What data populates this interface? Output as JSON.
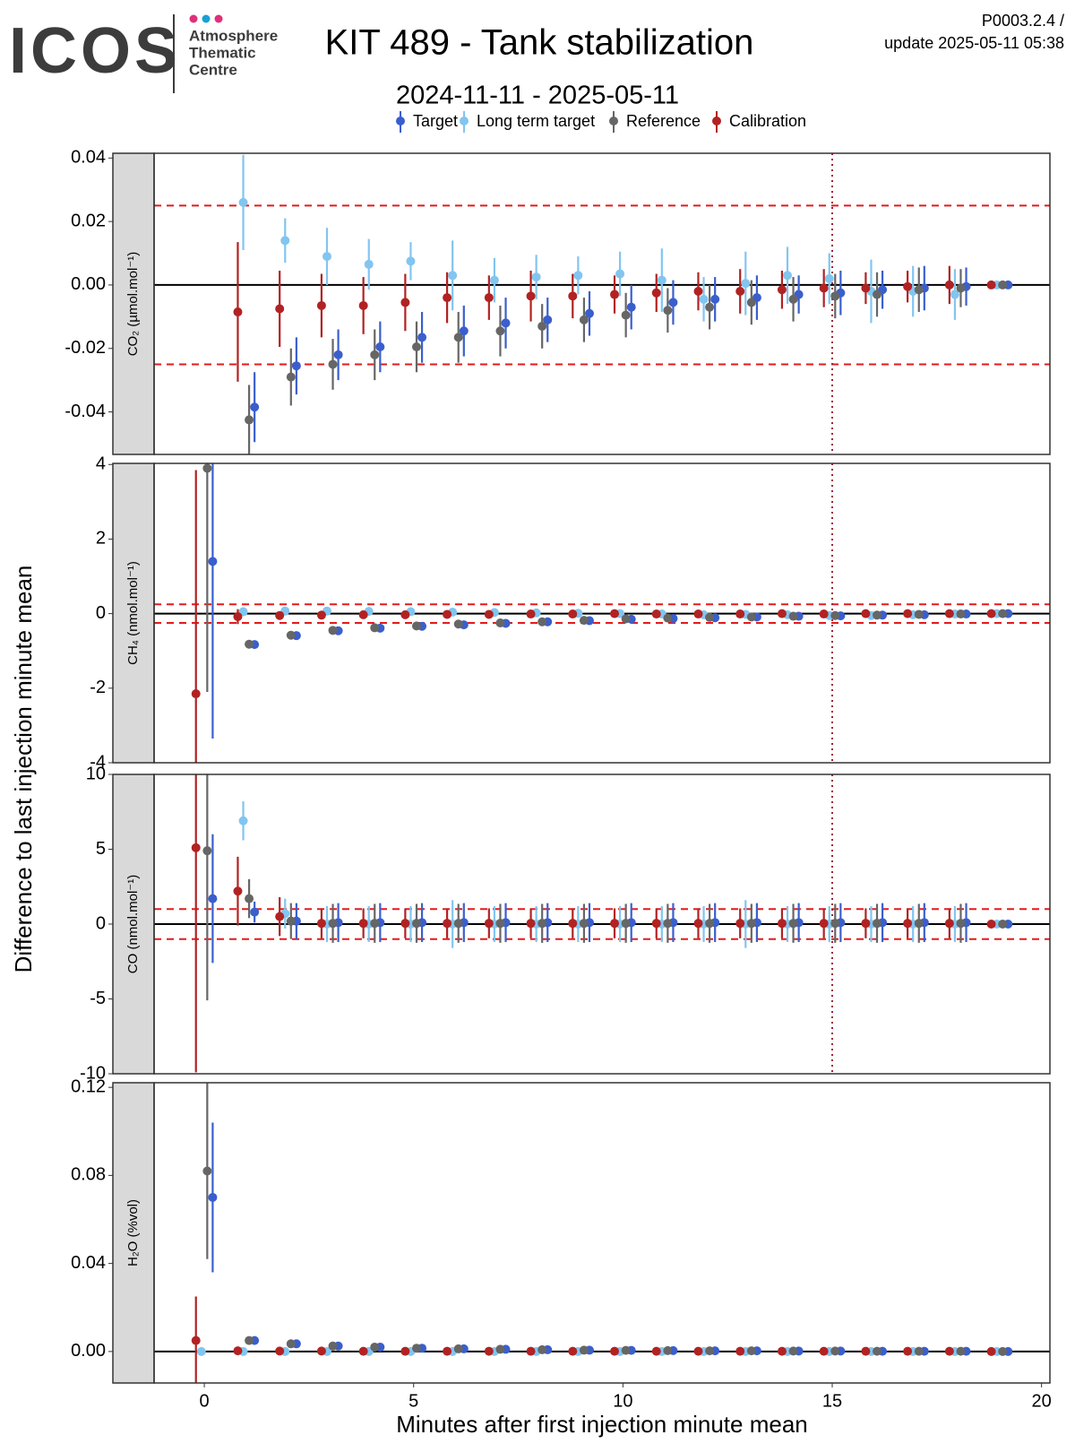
{
  "header": {
    "logo": "ICOS",
    "logo_sub": [
      "Atmosphere",
      "Thematic",
      "Centre"
    ],
    "title": "KIT 489 - Tank stabilization",
    "subtitle": "2024-11-11 - 2025-05-11",
    "version": "P0003.2.4 /",
    "update": "update  2025-05-11 05:38"
  },
  "x_axis": {
    "label": "Minutes after first injection minute mean",
    "xlim": [
      -1.2,
      20.2
    ],
    "xticks": [
      0,
      5,
      10,
      15,
      20
    ]
  },
  "y_axis": {
    "label": "Difference to last injection minute mean"
  },
  "chart_data": [
    {
      "type": "errorbar",
      "strip": "CO₂ (µmol.mol⁻¹)",
      "ylim": [
        -0.0534,
        0.0415
      ],
      "yticks": [
        -0.04,
        -0.02,
        {
          "value": 0,
          "label": "0.00"
        },
        0.02,
        0.04
      ],
      "hlines": [
        -0.025,
        0.025
      ],
      "vline": 15,
      "x": [
        0,
        1,
        2,
        3,
        4,
        5,
        6,
        7,
        8,
        9,
        10,
        11,
        12,
        13,
        14,
        15,
        16,
        17,
        18,
        19
      ],
      "series": [
        {
          "name": "Target",
          "color": "#3a5fcd",
          "values": [
            null,
            -0.0385,
            -0.0255,
            -0.022,
            -0.0195,
            -0.0165,
            -0.0145,
            -0.012,
            -0.011,
            -0.009,
            -0.007,
            -0.0055,
            -0.0045,
            -0.004,
            -0.003,
            -0.0025,
            -0.0015,
            -0.001,
            -0.0005,
            0
          ],
          "errors": [
            null,
            0.011,
            0.009,
            0.008,
            0.008,
            0.008,
            0.008,
            0.008,
            0.007,
            0.007,
            0.007,
            0.007,
            0.007,
            0.007,
            0.006,
            0.007,
            0.006,
            0.007,
            0.006,
            0
          ]
        },
        {
          "name": "Long term target",
          "color": "#82c5f0",
          "values": [
            null,
            0.026,
            0.014,
            0.009,
            0.0065,
            0.0075,
            0.003,
            0.0015,
            0.0025,
            0.003,
            0.0035,
            0.0015,
            -0.0045,
            0.0005,
            0.003,
            0.002,
            -0.002,
            -0.002,
            -0.003,
            0
          ],
          "errors": [
            null,
            0.015,
            0.007,
            0.009,
            0.008,
            0.006,
            0.011,
            0.007,
            0.007,
            0.006,
            0.007,
            0.01,
            0.007,
            0.01,
            0.009,
            0.008,
            0.01,
            0.008,
            0.008,
            0
          ]
        },
        {
          "name": "Reference",
          "color": "#666666",
          "values": [
            null,
            -0.0425,
            -0.029,
            -0.025,
            -0.022,
            -0.0195,
            -0.0165,
            -0.0145,
            -0.013,
            -0.011,
            -0.0095,
            -0.008,
            -0.007,
            -0.0055,
            -0.0045,
            -0.0035,
            -0.003,
            -0.0015,
            -0.001,
            0
          ],
          "errors": [
            null,
            0.011,
            0.009,
            0.008,
            0.008,
            0.008,
            0.008,
            0.008,
            0.007,
            0.007,
            0.007,
            0.007,
            0.007,
            0.007,
            0.007,
            0.007,
            0.007,
            0.007,
            0.006,
            0
          ]
        },
        {
          "name": "Calibration",
          "color": "#b22222",
          "values": [
            null,
            -0.0085,
            -0.0075,
            -0.0065,
            -0.0065,
            -0.0055,
            -0.004,
            -0.004,
            -0.0035,
            -0.0035,
            -0.003,
            -0.0025,
            -0.002,
            -0.002,
            -0.0015,
            -0.001,
            -0.001,
            -0.0005,
            0,
            0
          ],
          "errors": [
            null,
            0.022,
            0.012,
            0.01,
            0.009,
            0.009,
            0.008,
            0.007,
            0.008,
            0.007,
            0.006,
            0.006,
            0.006,
            0.007,
            0.006,
            0.006,
            0.005,
            0.005,
            0.006,
            0
          ]
        }
      ]
    },
    {
      "type": "errorbar",
      "strip": "CH₄ (nmol.mol⁻¹)",
      "ylim": [
        -4,
        4.03
      ],
      "yticks": [
        -4,
        -2,
        0,
        2,
        4
      ],
      "hlines": [
        -0.25,
        0.25
      ],
      "vline": 15,
      "x": [
        0,
        1,
        2,
        3,
        4,
        5,
        6,
        7,
        8,
        9,
        10,
        11,
        12,
        13,
        14,
        15,
        16,
        17,
        18,
        19
      ],
      "series": [
        {
          "name": "Target",
          "color": "#3a5fcd",
          "values": [
            1.4,
            -0.83,
            -0.59,
            -0.46,
            -0.39,
            -0.34,
            -0.3,
            -0.26,
            -0.22,
            -0.19,
            -0.15,
            -0.13,
            -0.11,
            -0.09,
            -0.07,
            -0.06,
            -0.04,
            -0.03,
            -0.01,
            0
          ],
          "errors": [
            4.75,
            0.06,
            0.05,
            0.05,
            0.05,
            0.05,
            0.05,
            0.05,
            0.05,
            0.05,
            0.05,
            0.05,
            0.05,
            0.05,
            0.05,
            0.05,
            0.05,
            0.05,
            0.05,
            0
          ]
        },
        {
          "name": "Long term target",
          "color": "#82c5f0",
          "values": [
            null,
            0.05,
            0.07,
            0.07,
            0.06,
            0.05,
            0.04,
            0.03,
            0.02,
            0.01,
            0,
            -0.01,
            -0.03,
            -0.02,
            -0.03,
            -0.05,
            -0.05,
            -0.03,
            -0.01,
            0
          ],
          "errors": [
            null,
            0.05,
            0.05,
            0.05,
            0.05,
            0.05,
            0.05,
            0.05,
            0.05,
            0.05,
            0.05,
            0.05,
            0.05,
            0.05,
            0.05,
            0.05,
            0.05,
            0.05,
            0.05,
            0
          ]
        },
        {
          "name": "Reference",
          "color": "#666666",
          "values": [
            3.9,
            -0.82,
            -0.58,
            -0.45,
            -0.38,
            -0.33,
            -0.28,
            -0.25,
            -0.22,
            -0.18,
            -0.14,
            -0.12,
            -0.1,
            -0.09,
            -0.07,
            -0.05,
            -0.04,
            -0.02,
            -0.01,
            0
          ],
          "errors": [
            6,
            0.06,
            0.05,
            0.05,
            0.05,
            0.05,
            0.05,
            0.05,
            0.05,
            0.05,
            0.05,
            0.05,
            0.05,
            0.05,
            0.05,
            0.05,
            0.05,
            0.05,
            0.05,
            0
          ]
        },
        {
          "name": "Calibration",
          "color": "#b22222",
          "values": [
            -2.15,
            -0.08,
            -0.05,
            -0.04,
            -0.03,
            -0.03,
            -0.02,
            -0.02,
            -0.01,
            -0.01,
            0,
            -0.01,
            -0.01,
            -0.01,
            0,
            -0.01,
            0,
            0,
            0,
            0
          ],
          "errors": [
            6,
            0.2,
            0.08,
            0.06,
            0.05,
            0.05,
            0.05,
            0.05,
            0.05,
            0.05,
            0.05,
            0.05,
            0.05,
            0.05,
            0.05,
            0.05,
            0.05,
            0.05,
            0.05,
            0
          ]
        }
      ]
    },
    {
      "type": "errorbar",
      "strip": "CO (nmol.mol⁻¹)",
      "ylim": [
        -10,
        10
      ],
      "yticks": [
        -10,
        -5,
        0,
        5,
        10
      ],
      "hlines": [
        -1,
        1
      ],
      "vline": 15,
      "x": [
        0,
        1,
        2,
        3,
        4,
        5,
        6,
        7,
        8,
        9,
        10,
        11,
        12,
        13,
        14,
        15,
        16,
        17,
        18,
        19
      ],
      "series": [
        {
          "name": "Target",
          "color": "#3a5fcd",
          "values": [
            1.7,
            0.8,
            0.2,
            0.1,
            0.1,
            0.1,
            0.1,
            0.1,
            0.1,
            0.1,
            0.1,
            0.1,
            0.1,
            0.1,
            0.1,
            0.1,
            0.1,
            0.1,
            0.1,
            0
          ],
          "errors": [
            4.3,
            0.7,
            1.2,
            1.3,
            1.3,
            1.3,
            1.3,
            1.3,
            1.3,
            1.3,
            1.3,
            1.3,
            1.3,
            1.3,
            1.3,
            1.3,
            1.3,
            1.3,
            1.3,
            0
          ]
        },
        {
          "name": "Long term target",
          "color": "#82c5f0",
          "values": [
            null,
            6.9,
            0.7,
            0,
            0,
            0,
            0,
            0,
            0,
            0,
            0,
            0,
            0,
            0,
            0,
            0,
            0,
            0,
            0,
            0
          ],
          "errors": [
            null,
            1.3,
            1.0,
            1.2,
            1.2,
            1.2,
            1.6,
            1.2,
            1.2,
            1.2,
            1.2,
            1.2,
            1.2,
            1.6,
            1.2,
            1.2,
            1.2,
            1.2,
            1.2,
            0
          ]
        },
        {
          "name": "Reference",
          "color": "#666666",
          "values": [
            4.9,
            1.7,
            0.2,
            0.05,
            0.05,
            0.05,
            0.05,
            0.05,
            0.05,
            0.05,
            0.05,
            0.05,
            0.05,
            0.05,
            0.05,
            0.05,
            0.05,
            0.05,
            0.05,
            0
          ],
          "errors": [
            10,
            1.3,
            1.2,
            1.3,
            1.3,
            1.3,
            1.3,
            1.3,
            1.3,
            1.3,
            1.3,
            1.3,
            1.3,
            1.3,
            1.3,
            1.3,
            1.3,
            1.3,
            1.3,
            0
          ]
        },
        {
          "name": "Calibration",
          "color": "#b22222",
          "values": [
            5.1,
            2.2,
            0.5,
            0.05,
            0.05,
            0.05,
            0.05,
            0.05,
            0.05,
            0.05,
            0.05,
            0.05,
            0.05,
            0.05,
            0.05,
            0.05,
            0.05,
            0.05,
            0.05,
            0
          ],
          "errors": [
            15,
            2.3,
            1.3,
            1.0,
            1.0,
            1.0,
            1.0,
            1.0,
            1.0,
            1.0,
            1.0,
            1.0,
            1.0,
            1.0,
            1.0,
            1.0,
            1.0,
            1.0,
            1.0,
            0
          ]
        }
      ]
    },
    {
      "type": "errorbar",
      "strip": "H₂O (%vol)",
      "ylim": [
        -0.0143,
        0.1221
      ],
      "yticks": [
        {
          "value": 0,
          "label": "0.00"
        },
        0.04,
        0.08,
        0.12
      ],
      "hlines": [],
      "x": [
        0,
        1,
        2,
        3,
        4,
        5,
        6,
        7,
        8,
        9,
        10,
        11,
        12,
        13,
        14,
        15,
        16,
        17,
        18,
        19
      ],
      "series": [
        {
          "name": "Target",
          "color": "#3a5fcd",
          "values": [
            0.07,
            0.005,
            0.0035,
            0.0025,
            0.002,
            0.0015,
            0.0012,
            0.001,
            0.0008,
            0.0006,
            0.0005,
            0.0004,
            0.0003,
            0.0003,
            0.0002,
            0.0002,
            0.0001,
            0.0001,
            0.0001,
            0
          ],
          "errors": [
            0.034,
            0.0005,
            0.0004,
            0.0004,
            0.0004,
            0.0004,
            0.0004,
            0.0004,
            0.0004,
            0.0004,
            0.0004,
            0.0004,
            0.0004,
            0.0004,
            0.0004,
            0.0004,
            0.0004,
            0.0004,
            0.0004,
            0
          ]
        },
        {
          "name": "Long term target",
          "color": "#82c5f0",
          "values": [
            0,
            0,
            0,
            0,
            0,
            0,
            0,
            0,
            0,
            0,
            0,
            0,
            0,
            0,
            0,
            0,
            0,
            0,
            0,
            0
          ],
          "errors": [
            0.001,
            0.0004,
            0.0004,
            0.0004,
            0.0004,
            0.0004,
            0.0004,
            0.0004,
            0.0004,
            0.0004,
            0.0004,
            0.0004,
            0.0004,
            0.0004,
            0.0004,
            0.0004,
            0.0004,
            0.0004,
            0.0004,
            0
          ]
        },
        {
          "name": "Reference",
          "color": "#666666",
          "values": [
            0.082,
            0.005,
            0.0035,
            0.0025,
            0.002,
            0.0015,
            0.0012,
            0.001,
            0.0008,
            0.0006,
            0.0005,
            0.0004,
            0.0003,
            0.0003,
            0.0002,
            0.0002,
            0.0001,
            0.0001,
            0.0001,
            0
          ],
          "errors": [
            0.04,
            0.0005,
            0.0004,
            0.0004,
            0.0004,
            0.0004,
            0.0004,
            0.0004,
            0.0004,
            0.0004,
            0.0004,
            0.0004,
            0.0004,
            0.0004,
            0.0004,
            0.0004,
            0.0004,
            0.0004,
            0.0004,
            0
          ]
        },
        {
          "name": "Calibration",
          "color": "#b22222",
          "values": [
            0.005,
            0.0003,
            0.0002,
            0.0002,
            0.0001,
            0.0001,
            0.0001,
            0.0001,
            0.0001,
            0.0001,
            0.0001,
            0.0001,
            0.0001,
            0.0001,
            0.0001,
            0.0001,
            0.0001,
            0.0001,
            0.0001,
            0
          ],
          "errors": [
            0.02,
            0.0004,
            0.0004,
            0.0004,
            0.0004,
            0.0004,
            0.0004,
            0.0004,
            0.0004,
            0.0004,
            0.0004,
            0.0004,
            0.0004,
            0.0004,
            0.0004,
            0.0004,
            0.0004,
            0.0004,
            0.0004,
            0
          ]
        }
      ]
    }
  ]
}
